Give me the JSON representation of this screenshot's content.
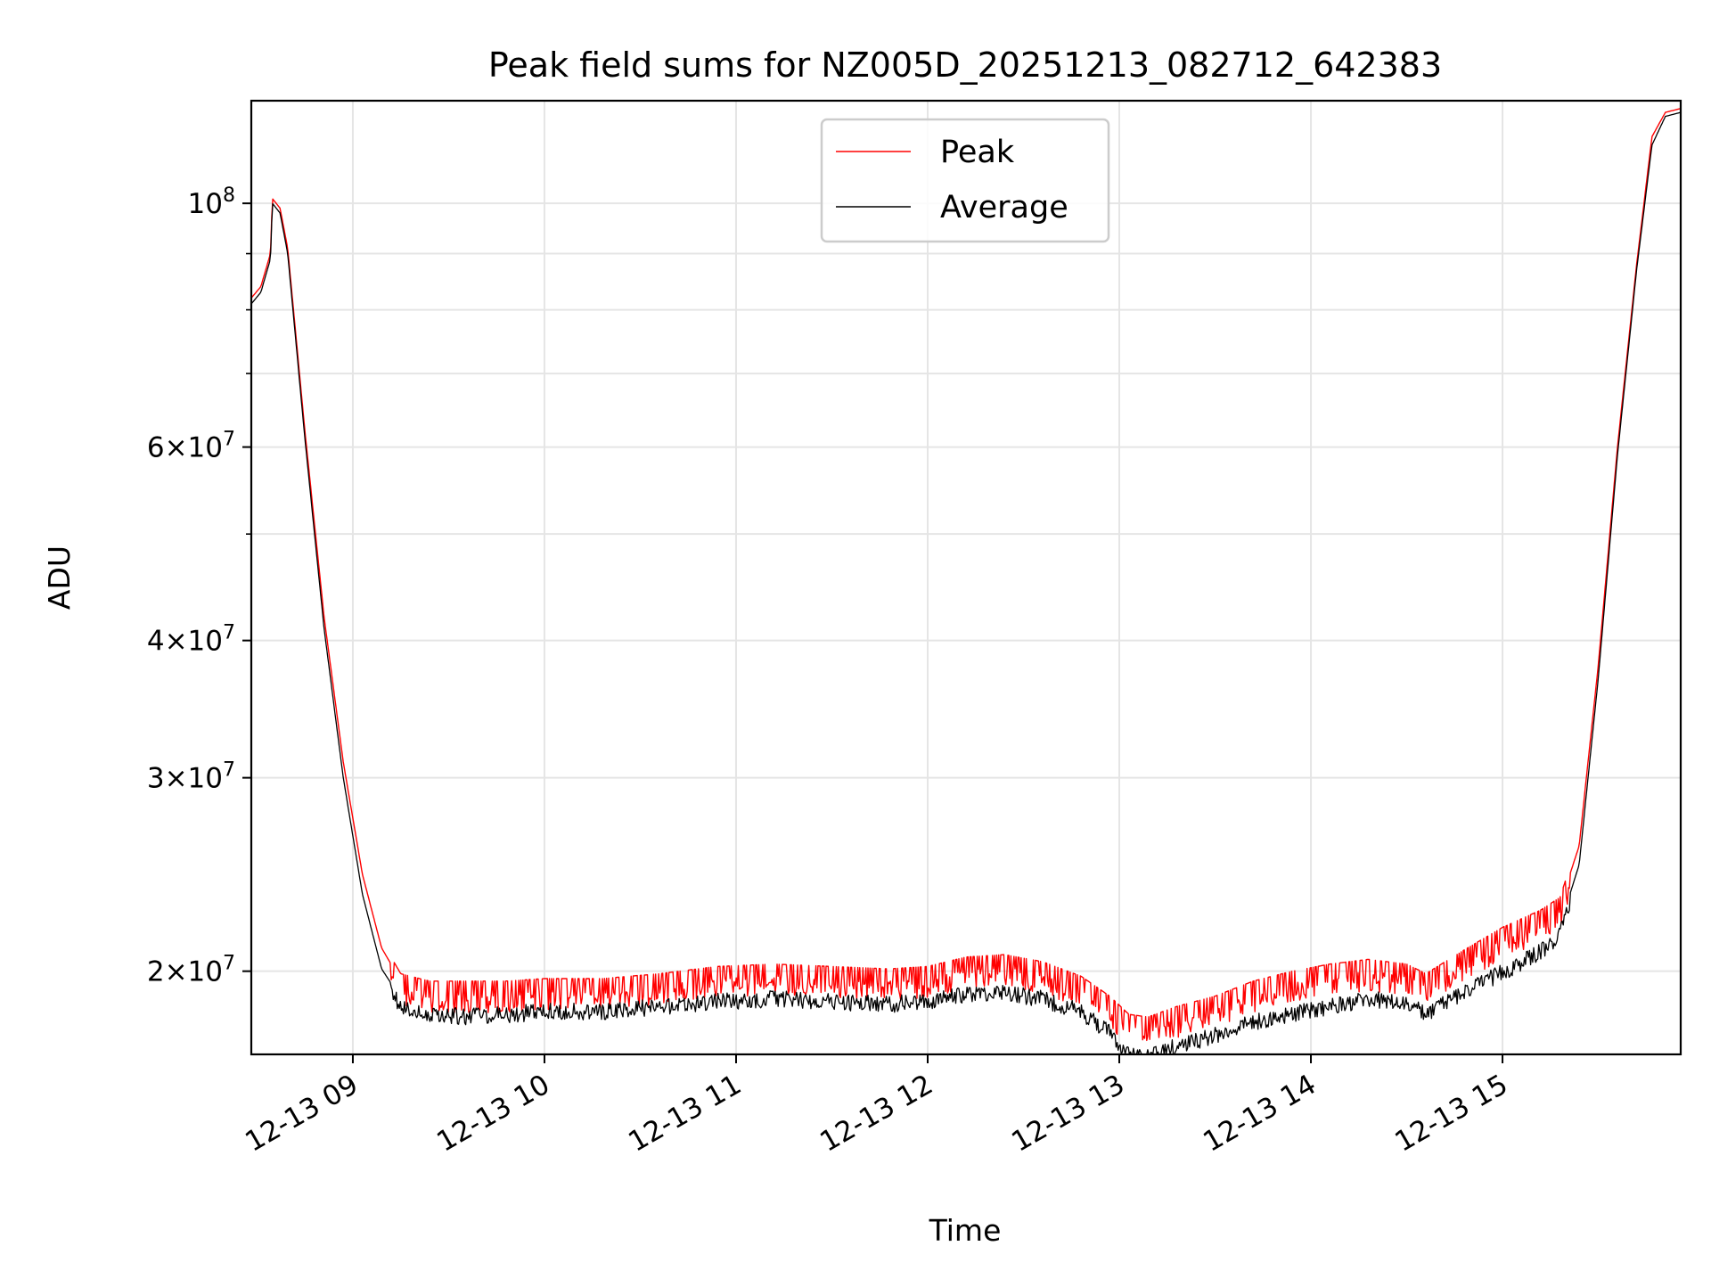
{
  "chart_data": {
    "type": "line",
    "title": "Peak field sums for NZ005D_20251213_082712_642383",
    "xlabel": "Time",
    "ylabel": "ADU",
    "y_scale": "log",
    "ylim": [
      16800000,
      124000000
    ],
    "xlim_hours": [
      8.47,
      15.93
    ],
    "grid": true,
    "legend_position": "upper center",
    "x_ticks": [
      {
        "value": 9,
        "label": "12-13 09"
      },
      {
        "value": 10,
        "label": "12-13 10"
      },
      {
        "value": 11,
        "label": "12-13 11"
      },
      {
        "value": 12,
        "label": "12-13 12"
      },
      {
        "value": 13,
        "label": "12-13 13"
      },
      {
        "value": 14,
        "label": "12-13 14"
      },
      {
        "value": 15,
        "label": "12-13 15"
      }
    ],
    "y_major_ticks": [
      {
        "value": 100000000,
        "mantissa": "",
        "exp": "8",
        "label": "10^8"
      }
    ],
    "y_minor_ticks": [
      {
        "value": 20000000,
        "mantissa": "2",
        "exp": "7",
        "label": "2×10^7"
      },
      {
        "value": 30000000,
        "mantissa": "3",
        "exp": "7",
        "label": "3×10^7"
      },
      {
        "value": 40000000,
        "mantissa": "4",
        "exp": "7",
        "label": "4×10^7"
      },
      {
        "value": 60000000,
        "mantissa": "6",
        "exp": "7",
        "label": "6×10^7"
      }
    ],
    "y_unlabeled_minor_ticks": [
      50000000,
      70000000,
      80000000,
      90000000
    ],
    "series": [
      {
        "name": "Peak",
        "color": "#ff0000",
        "noise": 0.05,
        "x": [
          8.47,
          8.52,
          8.57,
          8.58,
          8.62,
          8.66,
          8.75,
          8.85,
          8.95,
          9.05,
          9.15,
          9.25,
          9.4,
          9.6,
          9.8,
          10.0,
          10.3,
          10.6,
          10.9,
          11.2,
          11.5,
          11.8,
          12.0,
          12.2,
          12.4,
          12.6,
          12.8,
          12.95,
          13.05,
          13.15,
          13.3,
          13.5,
          13.7,
          13.9,
          14.1,
          14.3,
          14.5,
          14.6,
          14.8,
          15.0,
          15.2,
          15.3,
          15.4,
          15.5,
          15.6,
          15.7,
          15.78,
          15.85,
          15.93
        ],
        "values": [
          82000000,
          84000000,
          90000000,
          101000000,
          99000000,
          91000000,
          62000000,
          42000000,
          31000000,
          24500000,
          21000000,
          19600000,
          19300000,
          19300000,
          19300000,
          19400000,
          19400000,
          19600000,
          19900000,
          20000000,
          19900000,
          19800000,
          19900000,
          20300000,
          20400000,
          20100000,
          19500000,
          18700000,
          18000000,
          17900000,
          18300000,
          18700000,
          19300000,
          19700000,
          20000000,
          20200000,
          20000000,
          19600000,
          20600000,
          21600000,
          22400000,
          23000000,
          26000000,
          38000000,
          60000000,
          88000000,
          115000000,
          121000000,
          122000000
        ]
      },
      {
        "name": "Average",
        "color": "#000000",
        "noise": 0.035,
        "x": [
          8.47,
          8.52,
          8.57,
          8.58,
          8.62,
          8.66,
          8.75,
          8.85,
          8.95,
          9.05,
          9.15,
          9.25,
          9.4,
          9.6,
          9.8,
          10.0,
          10.3,
          10.6,
          10.9,
          11.2,
          11.5,
          11.8,
          12.0,
          12.2,
          12.4,
          12.6,
          12.8,
          12.95,
          13.05,
          13.15,
          13.3,
          13.5,
          13.7,
          13.9,
          14.1,
          14.3,
          14.5,
          14.6,
          14.8,
          15.0,
          15.2,
          15.3,
          15.4,
          15.5,
          15.6,
          15.7,
          15.78,
          15.85,
          15.93
        ],
        "values": [
          81000000,
          83000000,
          89000000,
          100000000,
          98000000,
          90000000,
          61000000,
          41000000,
          30000000,
          23500000,
          20100000,
          18900000,
          18600000,
          18500000,
          18600000,
          18700000,
          18700000,
          18900000,
          19100000,
          19200000,
          19100000,
          19000000,
          19100000,
          19400000,
          19500000,
          19200000,
          18700000,
          17900000,
          17100000,
          17000000,
          17400000,
          17800000,
          18300000,
          18600000,
          18900000,
          19200000,
          19000000,
          18600000,
          19500000,
          20300000,
          21200000,
          22000000,
          25000000,
          37000000,
          59000000,
          87000000,
          113000000,
          120000000,
          121000000
        ]
      }
    ]
  }
}
